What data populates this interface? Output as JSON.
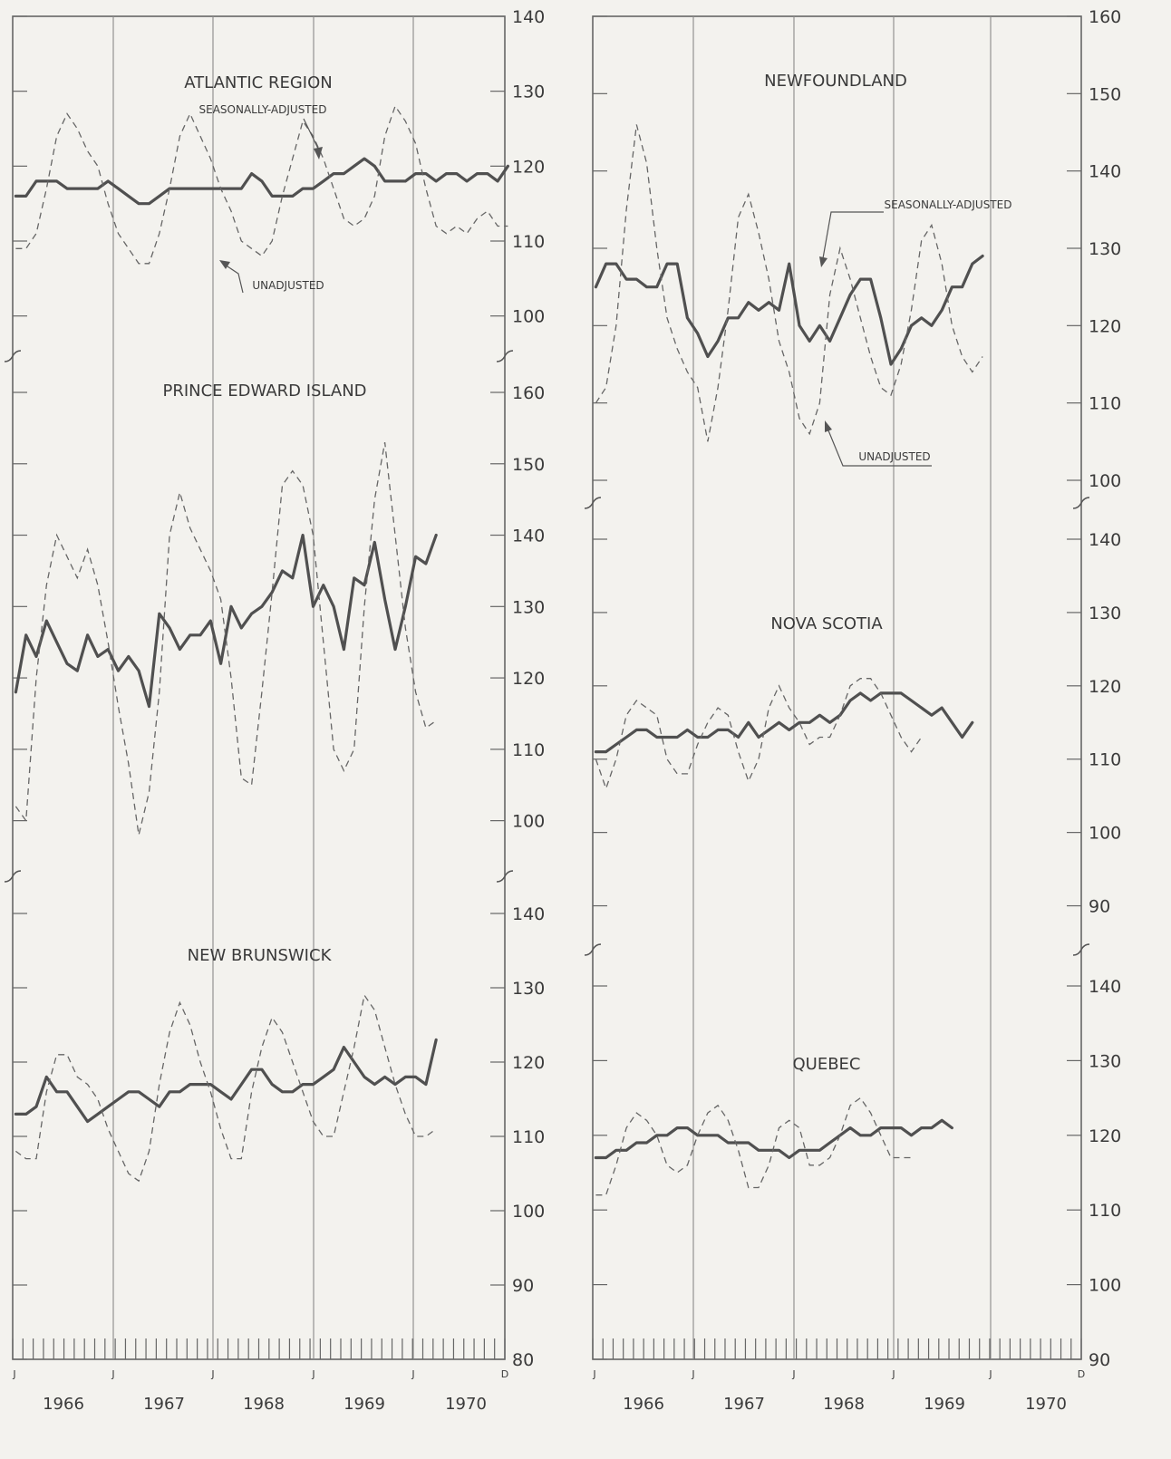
{
  "page": {
    "x_start_label": "J",
    "x_end_label": "D",
    "years": [
      "1966",
      "1967",
      "1968",
      "1969",
      "1970"
    ],
    "month_label": "J"
  },
  "chart_data": [
    {
      "type": "line",
      "title": "ATLANTIC REGION",
      "ylim": [
        95,
        140
      ],
      "y_ticks": [
        100,
        110,
        120,
        130,
        140
      ],
      "annotations": [
        "SEASONALLY-ADJUSTED",
        "UNADJUSTED"
      ],
      "series": [
        {
          "name": "SEASONALLY-ADJUSTED",
          "values": [
            116,
            116,
            118,
            118,
            118,
            117,
            117,
            117,
            117,
            118,
            117,
            116,
            115,
            115,
            116,
            117,
            117,
            117,
            117,
            117,
            117,
            117,
            117,
            119,
            118,
            116,
            116,
            116,
            117,
            117,
            118,
            119,
            119,
            120,
            121,
            120,
            118,
            118,
            118,
            119,
            119,
            118,
            119,
            119,
            118,
            119,
            119,
            118,
            120
          ]
        },
        {
          "name": "UNADJUSTED",
          "values": [
            109,
            109,
            111,
            117,
            124,
            127,
            125,
            122,
            120,
            115,
            111,
            109,
            107,
            107,
            111,
            117,
            124,
            127,
            124,
            121,
            117,
            114,
            110,
            109,
            108,
            110,
            116,
            121,
            126,
            124,
            121,
            117,
            113,
            112,
            113,
            116,
            124,
            128,
            126,
            123,
            117,
            112,
            111,
            112,
            111,
            113,
            114,
            112,
            112
          ]
        }
      ]
    },
    {
      "type": "line",
      "title": "PRINCE EDWARD ISLAND",
      "ylim": [
        95,
        160
      ],
      "y_ticks": [
        100,
        110,
        120,
        130,
        140,
        150,
        160
      ],
      "series": [
        {
          "name": "",
          "values": [
            118,
            126,
            123,
            128,
            125,
            122,
            121,
            126,
            123,
            124,
            121,
            123,
            121,
            116,
            129,
            127,
            124,
            126,
            126,
            128,
            122,
            130,
            127,
            129,
            130,
            132,
            135,
            134,
            140,
            130,
            133,
            130,
            124,
            134,
            133,
            139,
            131,
            124,
            130,
            137,
            136,
            140
          ]
        },
        {
          "name": "",
          "values": [
            102,
            100,
            120,
            133,
            140,
            137,
            134,
            138,
            133,
            125,
            116,
            108,
            98,
            104,
            118,
            140,
            146,
            141,
            138,
            135,
            131,
            120,
            106,
            105,
            118,
            132,
            147,
            149,
            147,
            140,
            125,
            110,
            107,
            110,
            130,
            145,
            153,
            140,
            127,
            118,
            113,
            114
          ]
        }
      ]
    },
    {
      "type": "line",
      "title": "NEW BRUNSWICK",
      "ylim": [
        80,
        140
      ],
      "y_ticks": [
        80,
        90,
        100,
        110,
        120,
        130,
        140
      ],
      "series": [
        {
          "name": "",
          "values": [
            113,
            113,
            114,
            118,
            116,
            116,
            114,
            112,
            113,
            114,
            115,
            116,
            116,
            115,
            114,
            116,
            116,
            117,
            117,
            117,
            116,
            115,
            117,
            119,
            119,
            117,
            116,
            116,
            117,
            117,
            118,
            119,
            122,
            120,
            118,
            117,
            118,
            117,
            118,
            118,
            117,
            123
          ]
        },
        {
          "name": "",
          "values": [
            108,
            107,
            107,
            116,
            121,
            121,
            118,
            117,
            115,
            111,
            108,
            105,
            104,
            108,
            117,
            124,
            128,
            125,
            120,
            116,
            111,
            107,
            107,
            116,
            122,
            126,
            124,
            120,
            116,
            112,
            110,
            110,
            116,
            122,
            129,
            127,
            122,
            117,
            113,
            110,
            110,
            111
          ]
        }
      ]
    },
    {
      "type": "line",
      "title": "NEWFOUNDLAND",
      "ylim": [
        100,
        160
      ],
      "y_ticks": [
        100,
        110,
        120,
        130,
        140,
        150,
        160
      ],
      "annotations": [
        "SEASONALLY-ADJUSTED",
        "UNADJUSTED"
      ],
      "series": [
        {
          "name": "SEASONALLY-ADJUSTED",
          "values": [
            125,
            128,
            128,
            126,
            126,
            125,
            125,
            128,
            128,
            121,
            119,
            116,
            118,
            121,
            121,
            123,
            122,
            123,
            122,
            128,
            120,
            118,
            120,
            118,
            121,
            124,
            126,
            126,
            121,
            115,
            117,
            120,
            121,
            120,
            122,
            125,
            125,
            128,
            129
          ]
        },
        {
          "name": "UNADJUSTED",
          "values": [
            110,
            112,
            120,
            135,
            146,
            141,
            130,
            121,
            117,
            114,
            112,
            105,
            112,
            122,
            134,
            137,
            132,
            126,
            118,
            114,
            108,
            106,
            110,
            124,
            130,
            126,
            121,
            116,
            112,
            111,
            115,
            122,
            131,
            133,
            128,
            120,
            116,
            114,
            116
          ]
        }
      ]
    },
    {
      "type": "line",
      "title": "NOVA SCOTIA",
      "ylim": [
        85,
        140
      ],
      "y_ticks": [
        90,
        100,
        110,
        120,
        130,
        140
      ],
      "series": [
        {
          "name": "",
          "values": [
            111,
            111,
            112,
            113,
            114,
            114,
            113,
            113,
            113,
            114,
            113,
            113,
            114,
            114,
            113,
            115,
            113,
            114,
            115,
            114,
            115,
            115,
            116,
            115,
            116,
            118,
            119,
            118,
            119,
            119,
            119,
            118,
            117,
            116,
            117,
            115,
            113,
            115
          ]
        },
        {
          "name": "",
          "values": [
            110,
            106,
            110,
            116,
            118,
            117,
            116,
            110,
            108,
            108,
            112,
            115,
            117,
            116,
            111,
            107,
            110,
            117,
            120,
            117,
            115,
            112,
            113,
            113,
            116,
            120,
            121,
            121,
            119,
            116,
            113,
            111,
            113
          ]
        }
      ]
    },
    {
      "type": "line",
      "title": "QUEBEC",
      "ylim": [
        90,
        140
      ],
      "y_ticks": [
        90,
        100,
        110,
        120,
        130,
        140
      ],
      "series": [
        {
          "name": "",
          "values": [
            117,
            117,
            118,
            118,
            119,
            119,
            120,
            120,
            121,
            121,
            120,
            120,
            120,
            119,
            119,
            119,
            118,
            118,
            118,
            117,
            118,
            118,
            118,
            119,
            120,
            121,
            120,
            120,
            121,
            121,
            121,
            120,
            121,
            121,
            122,
            121
          ]
        },
        {
          "name": "",
          "values": [
            112,
            112,
            116,
            121,
            123,
            122,
            120,
            116,
            115,
            116,
            120,
            123,
            124,
            122,
            118,
            113,
            113,
            116,
            121,
            122,
            121,
            116,
            116,
            117,
            120,
            124,
            125,
            123,
            120,
            117,
            117,
            117
          ]
        }
      ]
    }
  ]
}
